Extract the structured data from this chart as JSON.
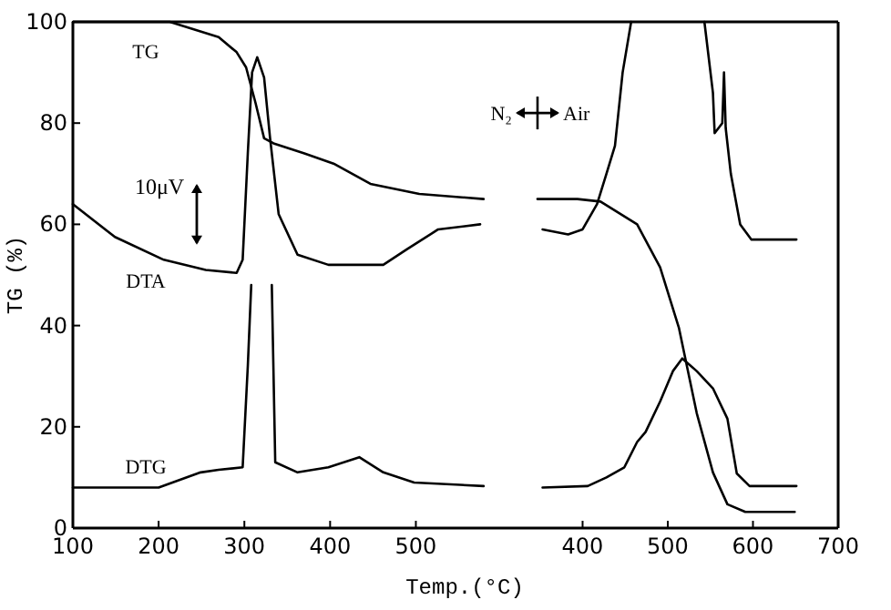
{
  "chart_data": [
    {
      "type": "line",
      "xlabel": "Temp.(°C)",
      "ylabel": "TG (%)",
      "xlim": [
        100,
        610
      ],
      "xticks": [
        100,
        200,
        300,
        400,
        500
      ],
      "ylim": [
        0,
        100
      ],
      "yticks": [
        0,
        20,
        40,
        60,
        80,
        100
      ],
      "annotations": [
        "10μV"
      ],
      "series": [
        {
          "name": "TG",
          "color": "#000000",
          "x": [
            100,
            213,
            270,
            291,
            302,
            313,
            323,
            334,
            370,
            404,
            447,
            504,
            579
          ],
          "values": [
            100,
            100,
            97,
            94,
            91,
            84,
            77,
            76,
            74,
            72,
            68,
            66,
            65
          ]
        },
        {
          "name": "DTA",
          "color": "#000000",
          "x": [
            100,
            149,
            206,
            255,
            291,
            298,
            304,
            309,
            315,
            323,
            330,
            340,
            362,
            398,
            462,
            489,
            526,
            575
          ],
          "values": [
            64,
            57.5,
            53,
            51,
            50.4,
            53,
            74,
            90,
            93,
            89,
            77,
            62,
            54,
            52,
            52,
            55,
            59,
            60
          ]
        },
        {
          "name": "DTG",
          "color": "#000000",
          "x": [
            100,
            200,
            249,
            270,
            298,
            304,
            308,
            320,
            332,
            336,
            362,
            398,
            434,
            462,
            498,
            579
          ],
          "values": [
            8,
            8,
            11,
            11.5,
            12,
            32,
            48,
            null,
            48,
            13,
            11,
            12,
            14,
            11,
            9,
            8.3
          ]
        }
      ]
    },
    {
      "type": "line",
      "xlim": [
        315,
        700
      ],
      "xticks": [
        400,
        500,
        600,
        700
      ],
      "ylim": [
        0,
        100
      ],
      "tick_labels": "x",
      "annotations": [
        "N₂",
        "Air"
      ],
      "series": [
        {
          "color": "#000000",
          "x": [
            347,
            394,
            421,
            464,
            491,
            513,
            534,
            553,
            570,
            591,
            649
          ],
          "values": [
            65,
            65,
            64.5,
            60,
            51.5,
            39.6,
            22.7,
            11,
            4.7,
            3.2,
            3.2
          ]
        },
        {
          "color": "#000000",
          "x": [
            353,
            383,
            400,
            417,
            428,
            438,
            447,
            457,
            500,
            543,
            553,
            555,
            564,
            566,
            568,
            574,
            585,
            598,
            651
          ],
          "values": [
            59,
            58,
            59,
            64,
            70,
            75.5,
            90,
            100,
            null,
            100,
            86,
            78,
            80,
            90,
            79,
            70,
            60,
            57,
            57
          ]
        },
        {
          "color": "#000000",
          "x": [
            353,
            406,
            428,
            449,
            464,
            474,
            491,
            506,
            517,
            534,
            553,
            570,
            581,
            596,
            651
          ],
          "values": [
            8,
            8.3,
            10,
            12,
            17,
            19,
            25,
            31,
            33.5,
            31,
            27.6,
            21.6,
            10.8,
            8.3,
            8.3
          ]
        }
      ]
    }
  ]
}
